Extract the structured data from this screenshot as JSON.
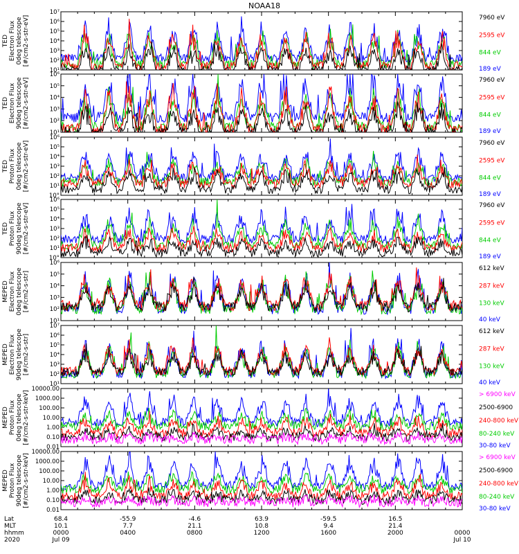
{
  "title": "NOAA18",
  "chart_data": [
    {
      "type": "line",
      "ylabel": [
        "TED",
        "Electron Flux",
        "0deg telescope",
        "[#/cm2-s-str-eV]"
      ],
      "yticks": [
        "10¹",
        "10²",
        "10³",
        "10⁴",
        "10⁵",
        "10⁶",
        "10⁷"
      ],
      "log_range": [
        1,
        7
      ],
      "series": [
        {
          "name": "7960 eV",
          "color": "#000000",
          "base": 1.0,
          "spread": 2.4
        },
        {
          "name": "2595 eV",
          "color": "#ff0000",
          "base": 1.4,
          "spread": 3.4
        },
        {
          "name": "844 eV",
          "color": "#00cc00",
          "base": 1.6,
          "spread": 3.2
        },
        {
          "name": "189 eV",
          "color": "#0000ff",
          "base": 2.2,
          "spread": 3.6
        }
      ]
    },
    {
      "type": "line",
      "ylabel": [
        "TED",
        "Electron Flux",
        "90deg telescope",
        "[#/cm2-s-str-eV]"
      ],
      "yticks": [
        "10¹",
        "10²",
        "10³",
        "10⁴",
        "10⁵",
        "10⁶"
      ],
      "log_range": [
        1,
        6
      ],
      "series": [
        {
          "name": "7960 eV",
          "color": "#000000",
          "base": 1.0,
          "spread": 2.2
        },
        {
          "name": "2595 eV",
          "color": "#ff0000",
          "base": 1.3,
          "spread": 3.3
        },
        {
          "name": "844 eV",
          "color": "#00cc00",
          "base": 1.5,
          "spread": 3.0
        },
        {
          "name": "189 eV",
          "color": "#0000ff",
          "base": 2.3,
          "spread": 3.5
        }
      ]
    },
    {
      "type": "line",
      "ylabel": [
        "TED",
        "Proton Flux",
        "0deg telescope",
        "[#/cm2-s-str-eV]"
      ],
      "yticks": [
        "10°",
        "10¹",
        "10²",
        "10³",
        "10⁴",
        "10⁵",
        "10⁶"
      ],
      "log_range": [
        0,
        6
      ],
      "series": [
        {
          "name": "7960 eV",
          "color": "#000000",
          "base": 0.6,
          "spread": 2.0
        },
        {
          "name": "2595 eV",
          "color": "#ff0000",
          "base": 1.2,
          "spread": 2.2
        },
        {
          "name": "844 eV",
          "color": "#00cc00",
          "base": 1.4,
          "spread": 2.4
        },
        {
          "name": "189 eV",
          "color": "#0000ff",
          "base": 1.8,
          "spread": 3.0
        }
      ]
    },
    {
      "type": "line",
      "ylabel": [
        "TED",
        "Proton Flux",
        "90deg telescope",
        "[#/cm2-s-str-eV]"
      ],
      "yticks": [
        "10°",
        "10¹",
        "10²",
        "10³",
        "10⁴",
        "10⁵",
        "10⁶"
      ],
      "log_range": [
        0,
        6
      ],
      "series": [
        {
          "name": "7960 eV",
          "color": "#000000",
          "base": 0.5,
          "spread": 1.4
        },
        {
          "name": "2595 eV",
          "color": "#ff0000",
          "base": 1.0,
          "spread": 1.8
        },
        {
          "name": "844 eV",
          "color": "#00cc00",
          "base": 1.3,
          "spread": 2.6
        },
        {
          "name": "189 eV",
          "color": "#0000ff",
          "base": 1.9,
          "spread": 3.0
        }
      ]
    },
    {
      "type": "line",
      "ylabel": [
        "MEPED",
        "Electron Flux",
        "0deg telescope",
        "[#/cm2-s-str]"
      ],
      "yticks": [
        "10¹",
        "10²",
        "10³",
        "10⁴",
        "10⁵",
        "10⁶"
      ],
      "log_range": [
        1,
        6
      ],
      "series": [
        {
          "name": "612 keV",
          "color": "#000000",
          "base": 2.2,
          "spread": 2.0
        },
        {
          "name": "287 keV",
          "color": "#ff0000",
          "base": 2.3,
          "spread": 2.6
        },
        {
          "name": "130 keV",
          "color": "#00cc00",
          "base": 2.0,
          "spread": 2.8
        },
        {
          "name": "40 keV",
          "color": "#0000ff",
          "base": 2.0,
          "spread": 3.2
        }
      ]
    },
    {
      "type": "line",
      "ylabel": [
        "MEPED",
        "Electron Flux",
        "90deg telescope",
        "[#/cm2-s-str]"
      ],
      "yticks": [
        "10¹",
        "10²",
        "10³",
        "10⁴",
        "10⁵",
        "10⁶",
        "10⁷"
      ],
      "log_range": [
        1,
        7
      ],
      "series": [
        {
          "name": "612 keV",
          "color": "#000000",
          "base": 2.2,
          "spread": 2.2
        },
        {
          "name": "287 keV",
          "color": "#ff0000",
          "base": 2.3,
          "spread": 2.8
        },
        {
          "name": "130 keV",
          "color": "#00cc00",
          "base": 2.0,
          "spread": 3.0
        },
        {
          "name": "40 keV",
          "color": "#0000ff",
          "base": 2.0,
          "spread": 3.6
        }
      ]
    },
    {
      "type": "line",
      "ylabel": [
        "MEPED",
        "Proton Flux",
        "0deg telescope",
        "[#/cm2-s-str-keV]"
      ],
      "yticks": [
        "0.01",
        "0.10",
        "1.00",
        "10.00",
        "100.00",
        "1000.00",
        "10000.00"
      ],
      "log_range": [
        -2,
        4
      ],
      "series": [
        {
          "name": "> 6900 keV",
          "color": "#ff00ff",
          "base": -1.3,
          "spread": 0.5
        },
        {
          "name": "2500-6900",
          "color": "#000000",
          "base": -1.0,
          "spread": 0.9
        },
        {
          "name": "240-800 keV",
          "color": "#ff0000",
          "base": -0.6,
          "spread": 1.6
        },
        {
          "name": "80-240 keV",
          "color": "#00cc00",
          "base": 0.1,
          "spread": 1.5
        },
        {
          "name": "30-80 keV",
          "color": "#0000ff",
          "base": 0.5,
          "spread": 2.8
        }
      ]
    },
    {
      "type": "line",
      "ylabel": [
        "MEPED",
        "Proton Flux",
        "90deg telescope",
        "[#/cm2-s-str-keV]"
      ],
      "yticks": [
        "0.01",
        "0.10",
        "1.00",
        "10.00",
        "100.00",
        "1000.00",
        "10000.00"
      ],
      "log_range": [
        -2,
        4
      ],
      "series": [
        {
          "name": "> 6900 keV",
          "color": "#ff00ff",
          "base": -1.3,
          "spread": 0.5
        },
        {
          "name": "2500-6900",
          "color": "#000000",
          "base": -1.0,
          "spread": 0.9
        },
        {
          "name": "240-800 keV",
          "color": "#ff0000",
          "base": -0.6,
          "spread": 1.7
        },
        {
          "name": "80-240 keV",
          "color": "#00cc00",
          "base": 0.1,
          "spread": 1.6
        },
        {
          "name": "30-80 keV",
          "color": "#0000ff",
          "base": 0.5,
          "spread": 2.9
        }
      ]
    }
  ],
  "x_axis": {
    "row_labels": [
      "Lat",
      "MLT",
      "hhmm",
      "2020"
    ],
    "columns": [
      {
        "lat": "68.4",
        "mlt": "10.1",
        "hhmm": "0000",
        "date": "Jul 09"
      },
      {
        "lat": "-55.9",
        "mlt": "7.7",
        "hhmm": "0400",
        "date": ""
      },
      {
        "lat": "-4.6",
        "mlt": "21.1",
        "hhmm": "0800",
        "date": ""
      },
      {
        "lat": "63.9",
        "mlt": "10.8",
        "hhmm": "1200",
        "date": ""
      },
      {
        "lat": "-59.5",
        "mlt": "9.4",
        "hhmm": "1600",
        "date": ""
      },
      {
        "lat": "16.5",
        "mlt": "21.4",
        "hhmm": "2000",
        "date": ""
      },
      {
        "lat": "",
        "mlt": "",
        "hhmm": "0000",
        "date": "Jul 10"
      }
    ]
  }
}
